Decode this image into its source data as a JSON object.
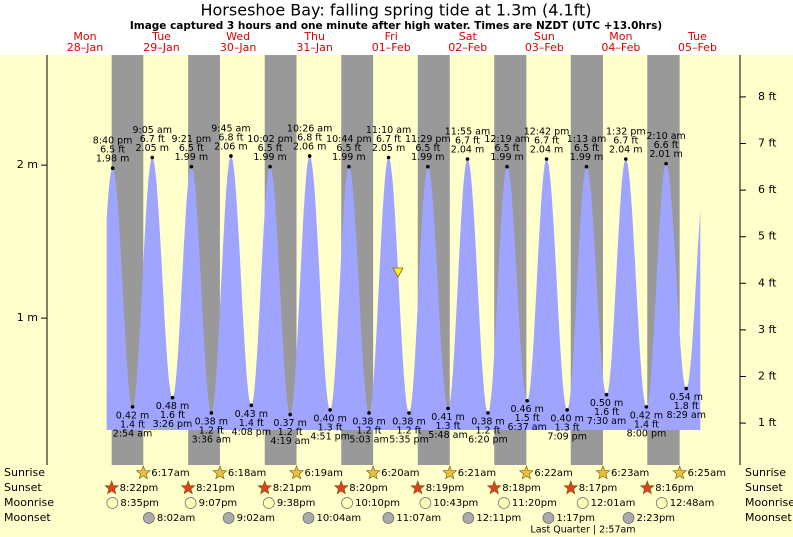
{
  "chart_data": {
    "type": "tide",
    "title": "Horseshoe Bay: falling  spring tide at 1.3m (4.1ft)",
    "subtitle": "Image captured 3 hours and one minute after high water. Times are NZDT (UTC +13.0hrs)",
    "days": [
      {
        "weekday": "Mon",
        "date": "28–Jan"
      },
      {
        "weekday": "Tue",
        "date": "29–Jan"
      },
      {
        "weekday": "Wed",
        "date": "30–Jan"
      },
      {
        "weekday": "Thu",
        "date": "31–Jan"
      },
      {
        "weekday": "Fri",
        "date": "01–Feb"
      },
      {
        "weekday": "Sat",
        "date": "02–Feb"
      },
      {
        "weekday": "Sun",
        "date": "03–Feb"
      },
      {
        "weekday": "Mon",
        "date": "04–Feb"
      },
      {
        "weekday": "Tue",
        "date": "05–Feb"
      }
    ],
    "ylim": [
      0.04,
      2.72
    ],
    "yticks": [
      {
        "value": 1,
        "label": "1 m"
      },
      {
        "value": 2,
        "label": "2 m"
      }
    ],
    "y2lim": [
      0.1,
      8.9
    ],
    "y2ticks": [
      {
        "value": 1,
        "label": "1 ft"
      },
      {
        "value": 2,
        "label": "2 ft"
      },
      {
        "value": 3,
        "label": "3 ft"
      },
      {
        "value": 4,
        "label": "4 ft"
      },
      {
        "value": 5,
        "label": "5 ft"
      },
      {
        "value": 6,
        "label": "6 ft"
      },
      {
        "value": 7,
        "label": "7 ft"
      },
      {
        "value": 8,
        "label": "8 ft"
      }
    ],
    "color": "#9fa5ff",
    "extremes": [
      {
        "time": "8:40 pm",
        "m": 1.98,
        "m_label": "1.98 m",
        "ft_label": "6.5 ft"
      },
      {
        "time": "2:54 am",
        "m": 0.42,
        "m_label": "0.42 m",
        "ft_label": "1.4 ft"
      },
      {
        "time": "9:05 am",
        "m": 2.05,
        "m_label": "2.05 m",
        "ft_label": "6.7 ft"
      },
      {
        "time": "3:26 pm",
        "m": 0.48,
        "m_label": "0.48 m",
        "ft_label": "1.6 ft"
      },
      {
        "time": "9:21 pm",
        "m": 1.99,
        "m_label": "1.99 m",
        "ft_label": "6.5 ft"
      },
      {
        "time": "3:36 am",
        "m": 0.38,
        "m_label": "0.38 m",
        "ft_label": "1.2 ft"
      },
      {
        "time": "9:45 am",
        "m": 2.06,
        "m_label": "2.06 m",
        "ft_label": "6.8 ft"
      },
      {
        "time": "4:08 pm",
        "m": 0.43,
        "m_label": "0.43 m",
        "ft_label": "1.4 ft"
      },
      {
        "time": "10:02 pm",
        "m": 1.99,
        "m_label": "1.99 m",
        "ft_label": "6.5 ft"
      },
      {
        "time": "4:19 am",
        "m": 0.37,
        "m_label": "0.37 m",
        "ft_label": "1.2 ft"
      },
      {
        "time": "10:26 am",
        "m": 2.06,
        "m_label": "2.06 m",
        "ft_label": "6.8 ft"
      },
      {
        "time": "4:51 pm",
        "m": 0.4,
        "m_label": "0.40 m",
        "ft_label": "1.3 ft"
      },
      {
        "time": "10:44 pm",
        "m": 1.99,
        "m_label": "1.99 m",
        "ft_label": "6.5 ft"
      },
      {
        "time": "5:03 am",
        "m": 0.38,
        "m_label": "0.38 m",
        "ft_label": "1.2 ft"
      },
      {
        "time": "11:10 am",
        "m": 2.05,
        "m_label": "2.05 m",
        "ft_label": "6.7 ft"
      },
      {
        "time": "5:35 pm",
        "m": 0.38,
        "m_label": "0.38 m",
        "ft_label": "1.2 ft"
      },
      {
        "time": "11:29 pm",
        "m": 1.99,
        "m_label": "1.99 m",
        "ft_label": "6.5 ft"
      },
      {
        "time": "5:48 am",
        "m": 0.41,
        "m_label": "0.41 m",
        "ft_label": "1.3 ft"
      },
      {
        "time": "11:55 am",
        "m": 2.04,
        "m_label": "2.04 m",
        "ft_label": "6.7 ft"
      },
      {
        "time": "6:20 pm",
        "m": 0.38,
        "m_label": "0.38 m",
        "ft_label": "1.2 ft"
      },
      {
        "time": "12:19 am",
        "m": 1.99,
        "m_label": "1.99 m",
        "ft_label": "6.5 ft"
      },
      {
        "time": "6:37 am",
        "m": 0.46,
        "m_label": "0.46 m",
        "ft_label": "1.5 ft"
      },
      {
        "time": "12:42 pm",
        "m": 2.04,
        "m_label": "2.04 m",
        "ft_label": "6.7 ft"
      },
      {
        "time": "7:09 pm",
        "m": 0.4,
        "m_label": "0.40 m",
        "ft_label": "1.3 ft"
      },
      {
        "time": "1:13 am",
        "m": 1.99,
        "m_label": "1.99 m",
        "ft_label": "6.5 ft"
      },
      {
        "time": "7:30 am",
        "m": 0.5,
        "m_label": "0.50 m",
        "ft_label": "1.6 ft"
      },
      {
        "time": "1:32 pm",
        "m": 2.04,
        "m_label": "2.04 m",
        "ft_label": "6.7 ft"
      },
      {
        "time": "8:00 pm",
        "m": 0.42,
        "m_label": "0.42 m",
        "ft_label": "1.4 ft"
      },
      {
        "time": "2:10 am",
        "m": 2.01,
        "m_label": "2.01 m",
        "ft_label": "6.6 ft"
      },
      {
        "time": "8:29 am",
        "m": 0.54,
        "m_label": "0.54 m",
        "ft_label": "1.8 ft"
      }
    ],
    "rows": [
      {
        "name": "Sunrise",
        "icon": "sunrise",
        "times": [
          null,
          "6:17am",
          "6:18am",
          "6:19am",
          "6:20am",
          "6:21am",
          "6:22am",
          "6:23am",
          "6:25am"
        ]
      },
      {
        "name": "Sunset",
        "icon": "sunset",
        "times": [
          "8:22pm",
          "8:21pm",
          "8:21pm",
          "8:20pm",
          "8:19pm",
          "8:18pm",
          "8:17pm",
          "8:16pm",
          null
        ]
      },
      {
        "name": "Moonrise",
        "icon": "moonrise",
        "times": [
          "8:35pm",
          "9:07pm",
          "9:38pm",
          "10:10pm",
          "10:43pm",
          "11:20pm",
          null,
          "12:01am",
          "12:48am"
        ]
      },
      {
        "name": "Moonset",
        "icon": "moonset",
        "times": [
          null,
          "8:02am",
          "9:02am",
          "10:04am",
          "11:07am",
          "12:11pm",
          "1:17pm",
          "2:23pm",
          null
        ]
      }
    ],
    "moon_phase": "Last Quarter | 2:57am"
  }
}
